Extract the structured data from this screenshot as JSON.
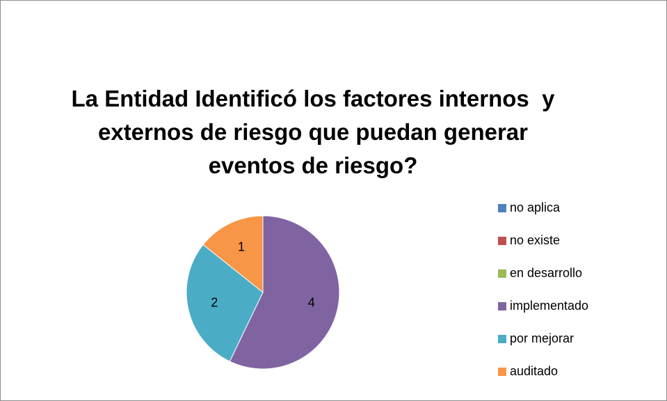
{
  "chart_data": {
    "type": "pie",
    "title": "La Entidad Identificó los factores internos  y externos de riesgo que puedan generar eventos de riesgo?",
    "categories": [
      "no aplica",
      "no existe",
      "en desarrollo",
      "implementado",
      "por mejorar",
      "auditado"
    ],
    "values": [
      0,
      0,
      0,
      4,
      2,
      1
    ],
    "colors": [
      "#4f81bd",
      "#c0504d",
      "#9bbb59",
      "#8064a2",
      "#4bacc6",
      "#f79646"
    ],
    "legend": "right"
  }
}
